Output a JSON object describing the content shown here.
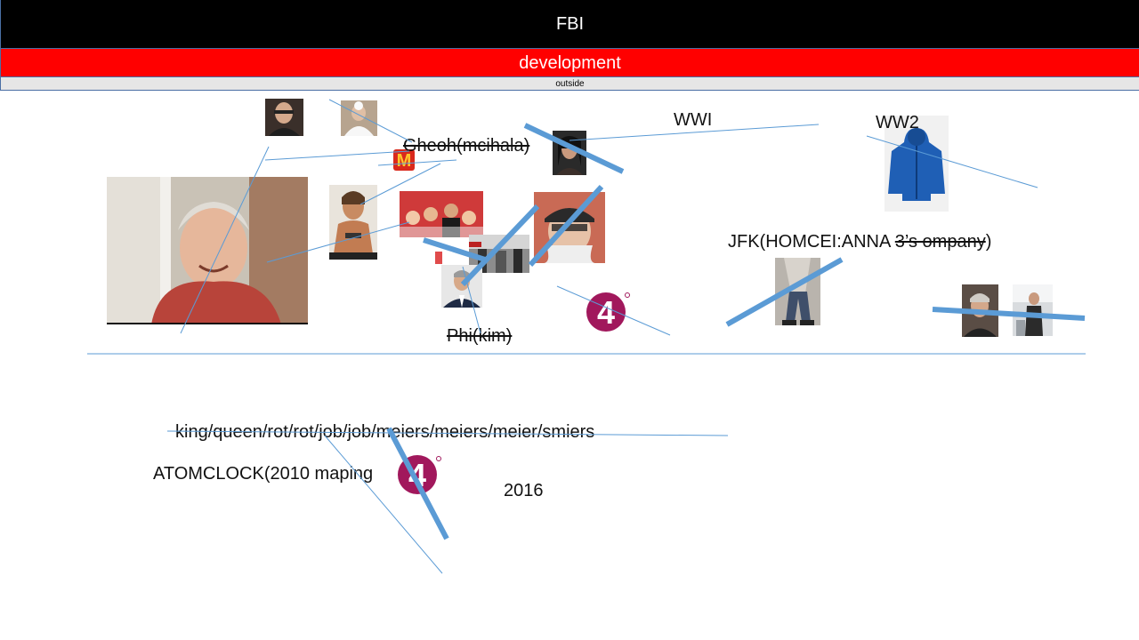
{
  "header": {
    "title": "FBI",
    "subtitle": "development",
    "caption": "outside"
  },
  "labels": {
    "gheoh": "Gheoh(mcihala)",
    "wwi": "WWI",
    "ww2": "WW2",
    "jfk_main": "JFK(HOMCEI:ANNA ",
    "jfk_strike": "3’s ompany",
    "jfk_close": ")",
    "phi": "Phi(kim)",
    "king_list": "king/queen/rot/rot/job/job/meiers/meiers/meier/smiers",
    "atomclock": "ATOMCLOCK(2010 maping",
    "year": "2016"
  },
  "logos": {
    "channel_four_1": "4",
    "channel_four_2": "4",
    "mcdonalds": "M"
  },
  "colors": {
    "header_bg": "#000000",
    "banner_red": "#ff0000",
    "caption_bg": "#e6e6e6",
    "line_blue": "#5b9bd5",
    "channel4": "#a1185c",
    "mcd_red": "#da291c",
    "mcd_yellow": "#ffc72c"
  }
}
